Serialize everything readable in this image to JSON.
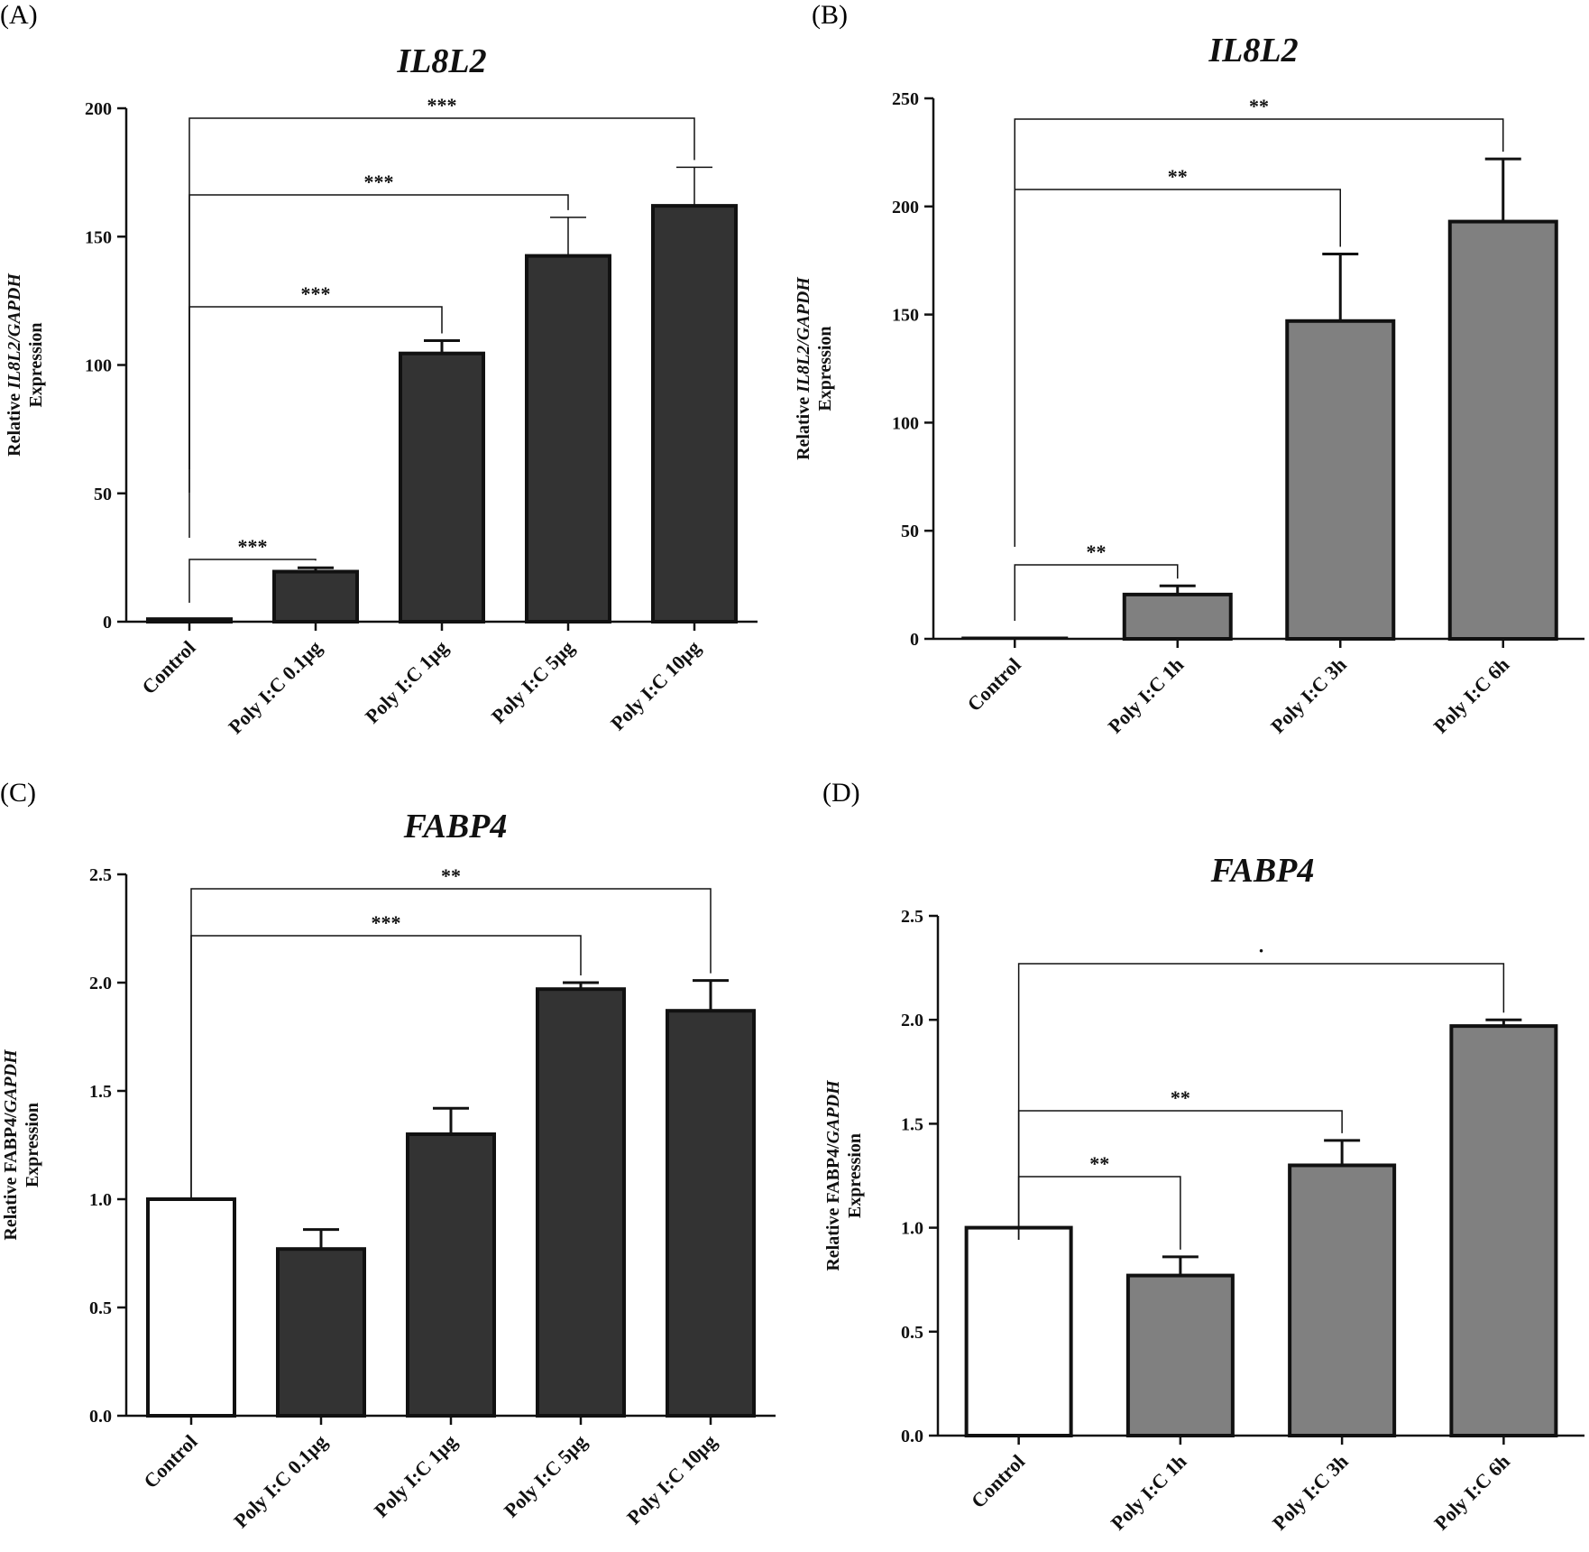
{
  "figure": {
    "panels": [
      {
        "letter": "(A)",
        "title": "IL8L2",
        "ylabel_parts": [
          "Relative ",
          "IL8L2/GAPDH"
        ],
        "ylabel_line2": "Expression"
      },
      {
        "letter": "(B)",
        "title": "IL8L2",
        "ylabel_parts": [
          "Relative ",
          "IL8L2/GAPDH"
        ],
        "ylabel_line2": "Expression"
      },
      {
        "letter": "(C)",
        "title": "FABP4",
        "ylabel_parts": [
          "Relative FABP4/",
          "GAPDH"
        ],
        "ylabel_line2": "Expression"
      },
      {
        "letter": "(D)",
        "title": "FABP4",
        "ylabel_parts": [
          "Relative FABP4/",
          "GAPDH"
        ],
        "ylabel_line2": "Expression"
      }
    ]
  },
  "colors": {
    "dark_bar": "#333333",
    "grey_bar": "#808080",
    "control_bar": "#ffffff",
    "axis": "#111111"
  },
  "chart_data": [
    {
      "type": "bar",
      "title": "IL8L2",
      "ylabel": "Relative IL8L2/GAPDH Expression",
      "categories": [
        "Control",
        "Poly I:C 0.1μg",
        "Poly I:C 1μg",
        "Poly I:C 5μg",
        "Poly I:C 10μg"
      ],
      "values": [
        1,
        19.5,
        104.5,
        142.5,
        162
      ],
      "errors": [
        0,
        1.5,
        5,
        15,
        15
      ],
      "bar_colors": [
        "dark",
        "dark",
        "dark",
        "dark",
        "dark"
      ],
      "ylim": [
        0,
        200
      ],
      "yticks": [
        "0",
        "50",
        "100",
        "150",
        "200"
      ],
      "yticks_values": [
        0,
        50,
        100,
        150,
        200
      ],
      "significance": [
        {
          "from": 0,
          "to": 1,
          "label": "***"
        },
        {
          "from": 0,
          "to": 2,
          "label": "***"
        },
        {
          "from": 0,
          "to": 3,
          "label": "***"
        },
        {
          "from": 0,
          "to": 4,
          "label": "***"
        }
      ]
    },
    {
      "type": "bar",
      "title": "IL8L2",
      "ylabel": "Relative IL8L2/GAPDH Expression",
      "categories": [
        "Control",
        "Poly I:C 1h",
        "Poly I:C 3h",
        "Poly I:C 6h"
      ],
      "values": [
        0,
        20.5,
        147,
        193
      ],
      "errors": [
        0,
        4,
        31,
        29
      ],
      "bar_colors": [
        "grey",
        "grey",
        "grey",
        "grey"
      ],
      "ylim": [
        0,
        250
      ],
      "yticks": [
        "0",
        "50",
        "100",
        "150",
        "200",
        "250"
      ],
      "yticks_values": [
        0,
        50,
        100,
        150,
        200,
        250
      ],
      "significance": [
        {
          "from": 0,
          "to": 1,
          "label": "**"
        },
        {
          "from": 0,
          "to": 2,
          "label": "**"
        },
        {
          "from": 0,
          "to": 3,
          "label": "**"
        }
      ]
    },
    {
      "type": "bar",
      "title": "FABP4",
      "ylabel": "Relative FABP4/GAPDH Expression",
      "categories": [
        "Control",
        "Poly I:C 0.1μg",
        "Poly I:C 1μg",
        "Poly I:C 5μg",
        "Poly I:C 10μg"
      ],
      "values": [
        1.0,
        0.77,
        1.3,
        1.97,
        1.87
      ],
      "errors": [
        0,
        0.09,
        0.12,
        0.03,
        0.14
      ],
      "bar_colors": [
        "white",
        "dark",
        "dark",
        "dark",
        "dark"
      ],
      "ylim": [
        0,
        2.5
      ],
      "yticks": [
        "0.0",
        "0.5",
        "1.0",
        "1.5",
        "2.0",
        "2.5"
      ],
      "yticks_values": [
        0,
        0.5,
        1.0,
        1.5,
        2.0,
        2.5
      ],
      "significance": [
        {
          "from": 0,
          "to": 3,
          "label": "***"
        },
        {
          "from": 0,
          "to": 4,
          "label": "**"
        }
      ]
    },
    {
      "type": "bar",
      "title": "FABP4",
      "ylabel": "Relative FABP4/GAPDH Expression",
      "categories": [
        "Control",
        "Poly I:C 1h",
        "Poly I:C 3h",
        "Poly I:C 6h"
      ],
      "values": [
        1.0,
        0.77,
        1.3,
        1.97
      ],
      "errors": [
        0,
        0.09,
        0.12,
        0.03
      ],
      "bar_colors": [
        "white",
        "grey",
        "grey",
        "grey"
      ],
      "ylim": [
        0,
        2.5
      ],
      "yticks": [
        "0.0",
        "0.5",
        "1.0",
        "1.5",
        "2.0",
        "2.5"
      ],
      "yticks_values": [
        0,
        0.5,
        1.0,
        1.5,
        2.0,
        2.5
      ],
      "significance": [
        {
          "from": 0,
          "to": 1,
          "label": "**"
        },
        {
          "from": 0,
          "to": 2,
          "label": "**"
        },
        {
          "from": 0,
          "to": 3,
          "label": "·"
        }
      ]
    }
  ]
}
